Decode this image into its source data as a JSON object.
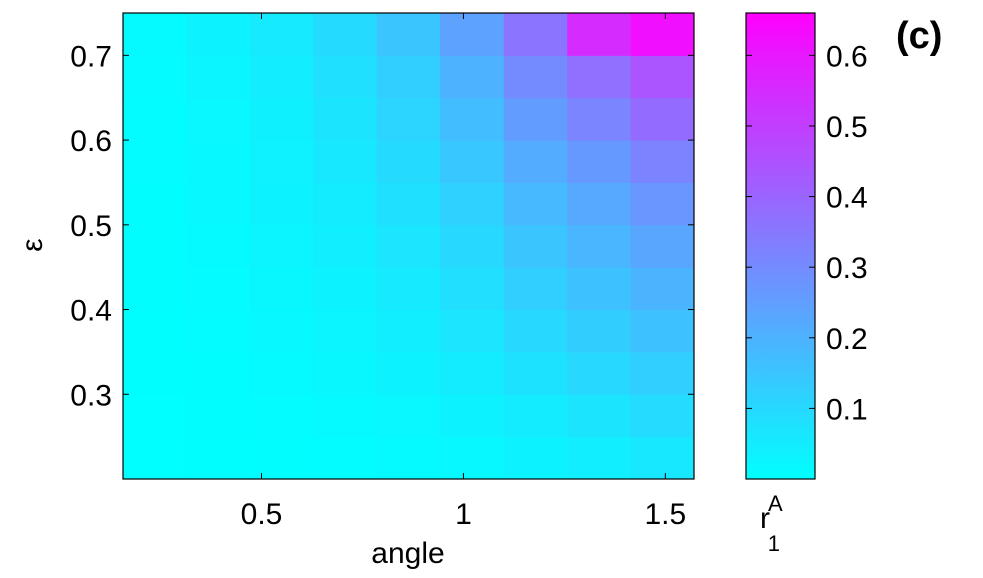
{
  "chart_data": {
    "type": "heatmap",
    "panel_label": "(c)",
    "xlabel": "angle",
    "ylabel": "ε",
    "colorbar_label": "r",
    "colorbar_label_sub": "1",
    "colorbar_label_sup": "A",
    "colormap": [
      "#00ffff",
      "#ff00ff"
    ],
    "xlim": [
      0.157,
      1.571
    ],
    "ylim": [
      0.2,
      0.75
    ],
    "color_range": [
      0,
      0.66
    ],
    "x_ticks": [
      0.5,
      1,
      1.5
    ],
    "x_tick_labels": [
      "0.5",
      "1",
      "1.5"
    ],
    "y_ticks": [
      0.3,
      0.4,
      0.5,
      0.6,
      0.7
    ],
    "y_tick_labels": [
      "0.3",
      "0.4",
      "0.5",
      "0.6",
      "0.7"
    ],
    "colorbar_ticks": [
      0.1,
      0.2,
      0.3,
      0.4,
      0.5,
      0.6
    ],
    "colorbar_tick_labels": [
      "0.1",
      "0.2",
      "0.3",
      "0.4",
      "0.5",
      "0.6"
    ],
    "x": [
      0.157,
      0.314,
      0.471,
      0.628,
      0.785,
      0.942,
      1.1,
      1.257,
      1.414,
      1.571
    ],
    "y": [
      0.2,
      0.25,
      0.3,
      0.35,
      0.4,
      0.45,
      0.5,
      0.55,
      0.6,
      0.65,
      0.7,
      0.75
    ],
    "values": [
      [
        0.0,
        0.002,
        0.004,
        0.007,
        0.012,
        0.018,
        0.03,
        0.045,
        0.06
      ],
      [
        0.001,
        0.004,
        0.008,
        0.014,
        0.022,
        0.034,
        0.05,
        0.07,
        0.09
      ],
      [
        0.002,
        0.006,
        0.012,
        0.02,
        0.032,
        0.05,
        0.075,
        0.1,
        0.125
      ],
      [
        0.003,
        0.008,
        0.016,
        0.027,
        0.043,
        0.066,
        0.1,
        0.13,
        0.16
      ],
      [
        0.004,
        0.01,
        0.02,
        0.034,
        0.054,
        0.083,
        0.125,
        0.16,
        0.195
      ],
      [
        0.005,
        0.013,
        0.025,
        0.042,
        0.066,
        0.1,
        0.15,
        0.19,
        0.23
      ],
      [
        0.006,
        0.016,
        0.03,
        0.05,
        0.08,
        0.12,
        0.18,
        0.225,
        0.27
      ],
      [
        0.007,
        0.019,
        0.035,
        0.06,
        0.095,
        0.145,
        0.215,
        0.265,
        0.32
      ],
      [
        0.008,
        0.022,
        0.04,
        0.07,
        0.11,
        0.17,
        0.255,
        0.315,
        0.38
      ],
      [
        0.01,
        0.025,
        0.046,
        0.08,
        0.125,
        0.2,
        0.3,
        0.37,
        0.44
      ],
      [
        0.012,
        0.03,
        0.055,
        0.095,
        0.15,
        0.24,
        0.36,
        0.55,
        0.62
      ]
    ]
  }
}
